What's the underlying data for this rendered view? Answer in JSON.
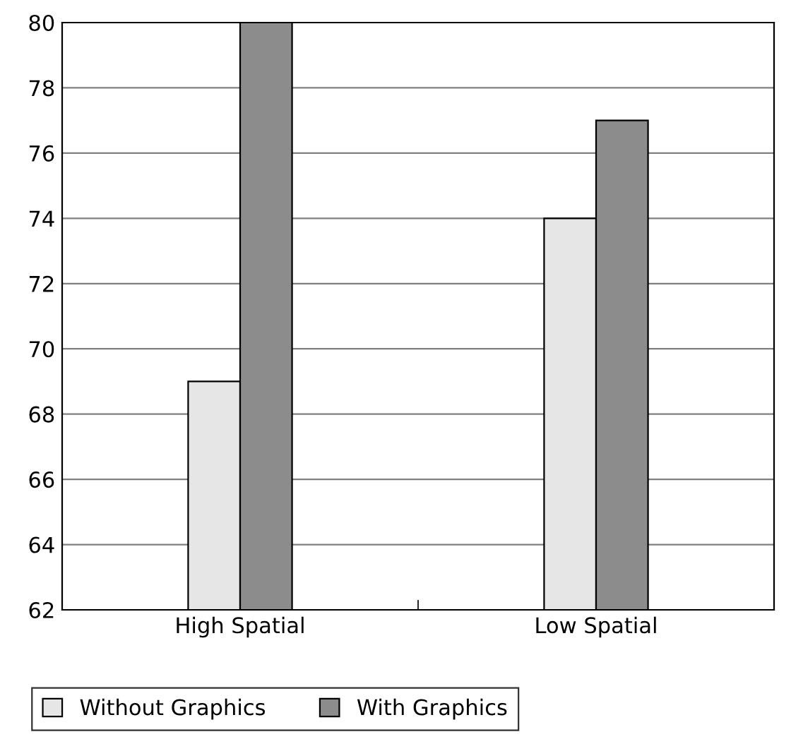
{
  "chart_data": {
    "type": "bar",
    "categories": [
      "High Spatial",
      "Low Spatial"
    ],
    "series": [
      {
        "name": "Without Graphics",
        "color": "#e6e6e6",
        "values": [
          69,
          74
        ]
      },
      {
        "name": "With Graphics",
        "color": "#8c8c8c",
        "values": [
          80,
          77
        ]
      }
    ],
    "ylim": [
      62,
      80
    ],
    "yticks": [
      62,
      64,
      66,
      68,
      70,
      72,
      74,
      76,
      78,
      80
    ],
    "grid": "y",
    "legend": "bottom"
  }
}
